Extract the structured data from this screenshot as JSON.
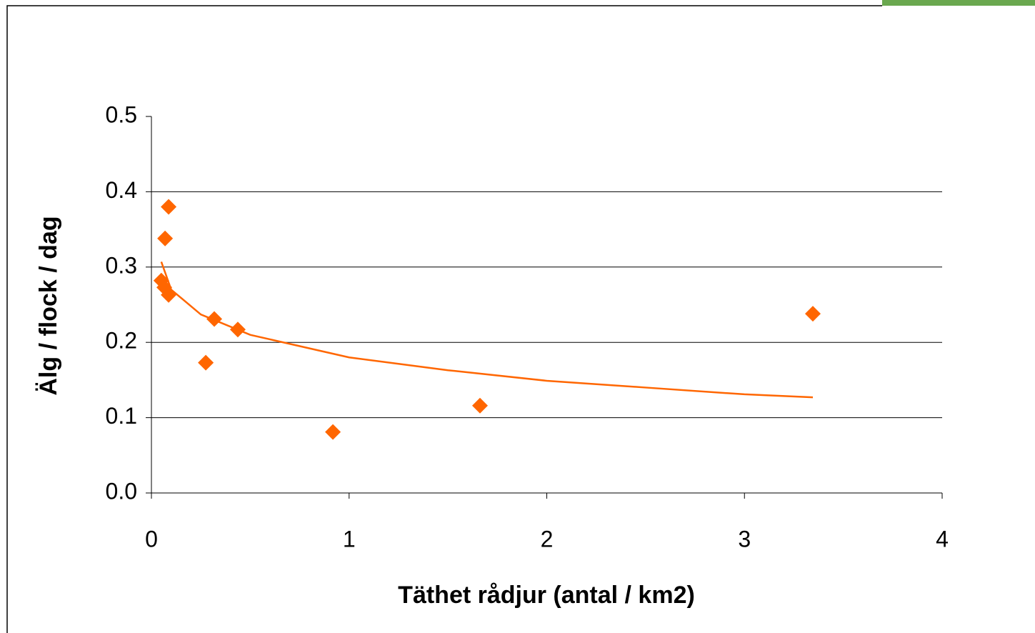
{
  "chart_data": {
    "type": "scatter",
    "x_label": "Täthet rådjur (antal / km2)",
    "y_label": "Älg / flock / dag",
    "series": [
      {
        "type": "scatter",
        "color": "#ff6600",
        "x": [
          0.05,
          0.065,
          0.069,
          0.087,
          0.087,
          0.275,
          0.318,
          0.437,
          0.918,
          1.662,
          3.346
        ],
        "values": [
          0.282,
          0.273,
          0.338,
          0.38,
          0.263,
          0.173,
          0.231,
          0.217,
          0.081,
          0.116,
          0.238
        ]
      },
      {
        "type": "line",
        "color": "#ff6600",
        "x": [
          0.05,
          0.1,
          0.25,
          0.5,
          1,
          1.5,
          2,
          2.5,
          3,
          3.346
        ],
        "values": [
          0.307,
          0.27,
          0.237,
          0.21,
          0.18,
          0.163,
          0.149,
          0.14,
          0.131,
          0.127
        ]
      }
    ],
    "xlim": [
      0,
      4
    ],
    "xticks": [
      0,
      1,
      2,
      3,
      4
    ],
    "ylim": [
      0,
      0.5
    ],
    "yticks": [
      {
        "value": 0,
        "label": "0.0"
      },
      0.1,
      0.2,
      0.3,
      0.4,
      0.5
    ],
    "grid": true
  }
}
